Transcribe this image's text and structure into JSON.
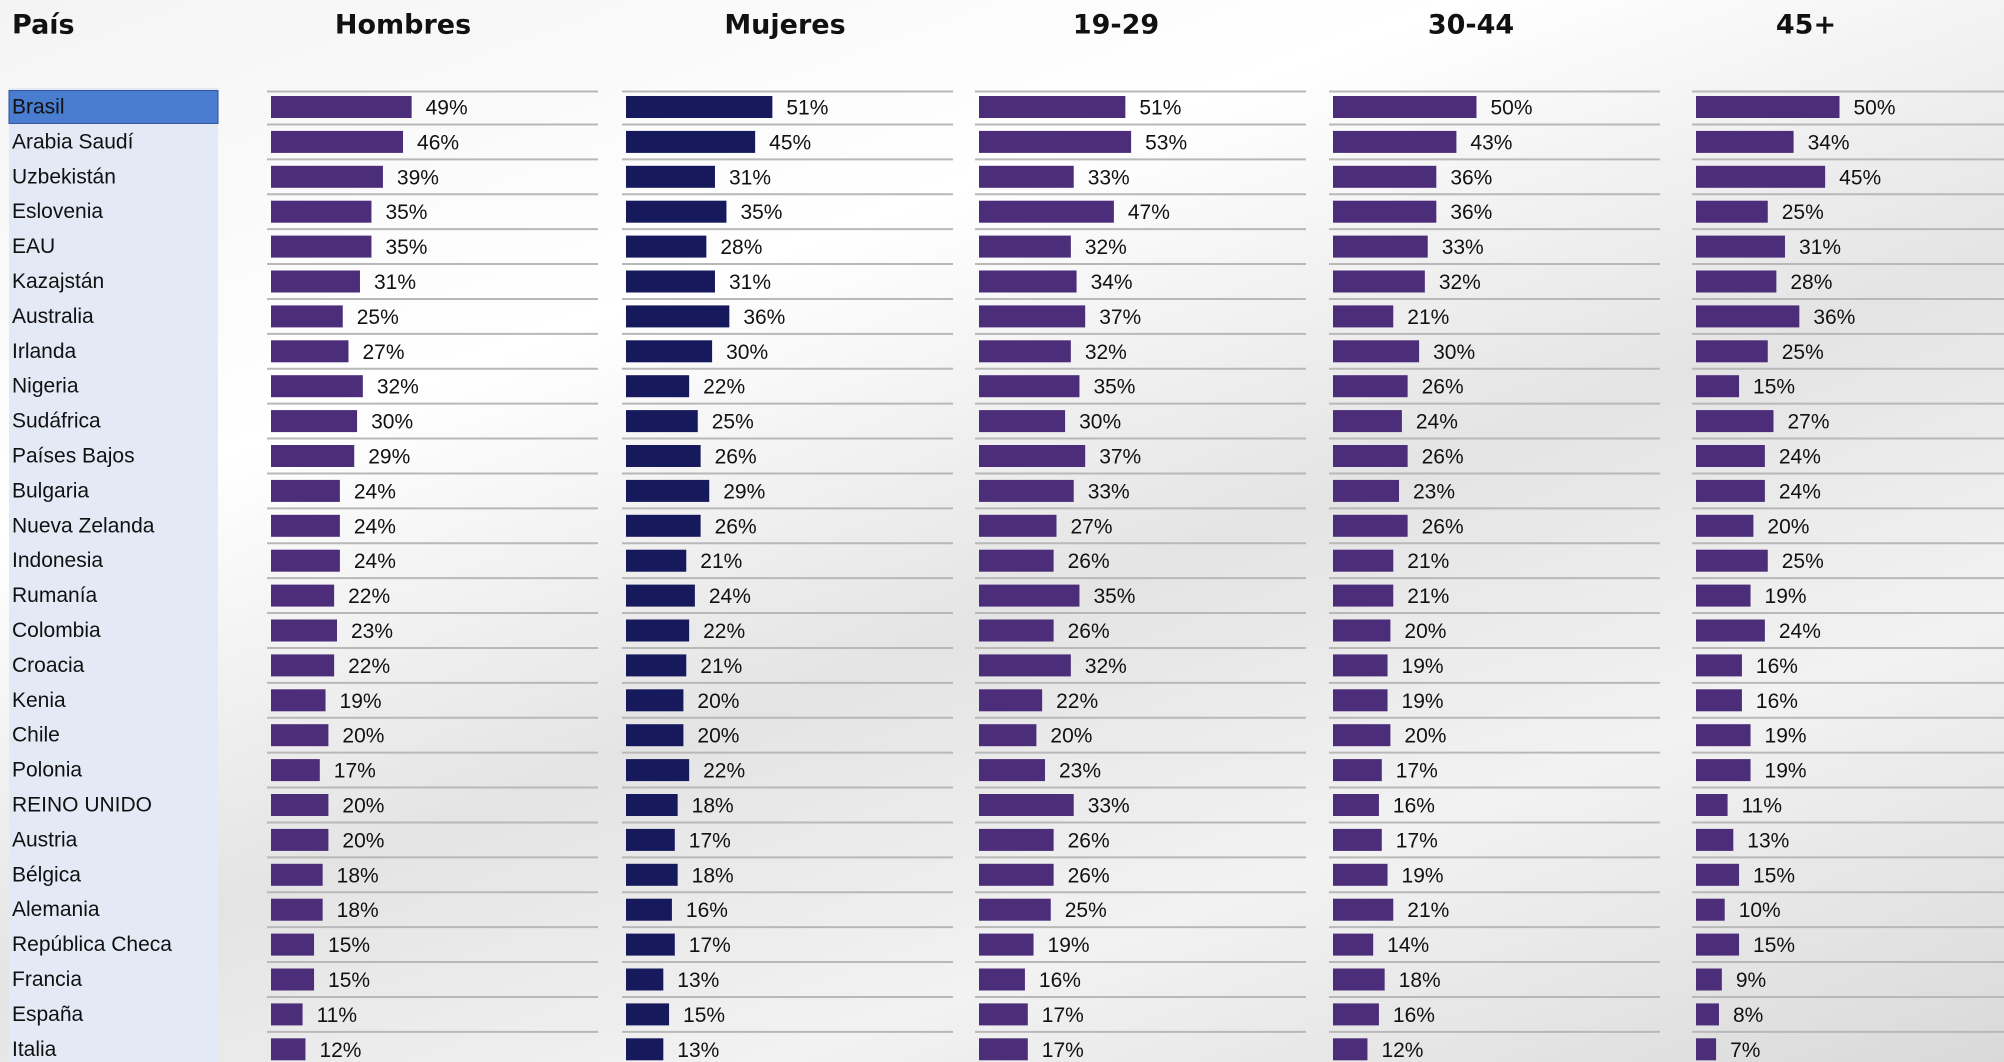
{
  "chart_data": {
    "type": "bar",
    "orientation": "horizontal",
    "category_header": "País",
    "categories": [
      "Brasil",
      "Arabia Saudí",
      "Uzbekistán",
      "Eslovenia",
      "EAU",
      "Kazajstán",
      "Australia",
      "Irlanda",
      "Nigeria",
      "Sudáfrica",
      "Países Bajos",
      "Bulgaria",
      "Nueva Zelanda",
      "Indonesia",
      "Rumanía",
      "Colombia",
      "Croacia",
      "Kenia",
      "Chile",
      "Polonia",
      "REINO UNIDO",
      "Austria",
      "Bélgica",
      "Alemania",
      "República Checa",
      "Francia",
      "España",
      "Italia"
    ],
    "xlim": [
      0,
      100
    ],
    "series": [
      {
        "name": "Hombres",
        "color": "#4b2d7a",
        "values": [
          49,
          46,
          39,
          35,
          35,
          31,
          25,
          27,
          32,
          30,
          29,
          24,
          24,
          24,
          22,
          23,
          22,
          19,
          20,
          17,
          20,
          20,
          18,
          18,
          15,
          15,
          11,
          12
        ],
        "value_labels": [
          "49%",
          "46%",
          "39%",
          "35%",
          "35%",
          "31%",
          "25%",
          "27%",
          "32%",
          "30%",
          "29%",
          "24%",
          "24%",
          "24%",
          "22%",
          "23%",
          "22%",
          "19%",
          "20%",
          "17%",
          "20%",
          "20%",
          "18%",
          "18%",
          "15%",
          "15%",
          "11%",
          "12%"
        ]
      },
      {
        "name": "Mujeres",
        "color": "#16195c",
        "values": [
          51,
          45,
          31,
          35,
          28,
          31,
          36,
          30,
          22,
          25,
          26,
          29,
          26,
          21,
          24,
          22,
          21,
          20,
          20,
          22,
          18,
          17,
          18,
          16,
          17,
          13,
          15,
          13
        ],
        "value_labels": [
          "51%",
          "45%",
          "31%",
          "35%",
          "28%",
          "31%",
          "36%",
          "30%",
          "22%",
          "25%",
          "26%",
          "29%",
          "26%",
          "21%",
          "24%",
          "22%",
          "21%",
          "20%",
          "20%",
          "22%",
          "18%",
          "17%",
          "18%",
          "16%",
          "17%",
          "13%",
          "15%",
          "13%"
        ]
      },
      {
        "name": "19-29",
        "color": "#4b2d7a",
        "values": [
          51,
          53,
          33,
          47,
          32,
          34,
          37,
          32,
          35,
          30,
          37,
          33,
          27,
          26,
          35,
          26,
          32,
          22,
          20,
          23,
          33,
          26,
          26,
          25,
          19,
          16,
          17,
          17
        ],
        "value_labels": [
          "51%",
          "53%",
          "33%",
          "47%",
          "32%",
          "34%",
          "37%",
          "32%",
          "35%",
          "30%",
          "37%",
          "33%",
          "27%",
          "26%",
          "35%",
          "26%",
          "32%",
          "22%",
          "20%",
          "23%",
          "33%",
          "26%",
          "26%",
          "25%",
          "19%",
          "16%",
          "17%",
          "17%"
        ]
      },
      {
        "name": "30-44",
        "color": "#4b2d7a",
        "values": [
          50,
          43,
          36,
          36,
          33,
          32,
          21,
          30,
          26,
          24,
          26,
          23,
          26,
          21,
          21,
          20,
          19,
          19,
          20,
          17,
          16,
          17,
          19,
          21,
          14,
          18,
          16,
          12
        ],
        "value_labels": [
          "50%",
          "43%",
          "36%",
          "36%",
          "33%",
          "32%",
          "21%",
          "30%",
          "26%",
          "24%",
          "26%",
          "23%",
          "26%",
          "21%",
          "21%",
          "20%",
          "19%",
          "19%",
          "20%",
          "17%",
          "16%",
          "17%",
          "19%",
          "21%",
          "14%",
          "18%",
          "16%",
          "12%"
        ]
      },
      {
        "name": "45+",
        "color": "#4b2d7a",
        "values": [
          50,
          34,
          45,
          25,
          31,
          28,
          36,
          25,
          15,
          27,
          24,
          24,
          20,
          25,
          19,
          24,
          16,
          16,
          19,
          19,
          11,
          13,
          15,
          10,
          15,
          9,
          8,
          7
        ],
        "value_labels": [
          "50%",
          "34%",
          "45%",
          "25%",
          "31%",
          "28%",
          "36%",
          "25%",
          "15%",
          "27%",
          "24%",
          "24%",
          "20%",
          "25%",
          "19%",
          "24%",
          "16%",
          "16%",
          "19%",
          "19%",
          "11%",
          "13%",
          "15%",
          "10%",
          "15%",
          "9%",
          "8%",
          "7%"
        ]
      }
    ]
  }
}
